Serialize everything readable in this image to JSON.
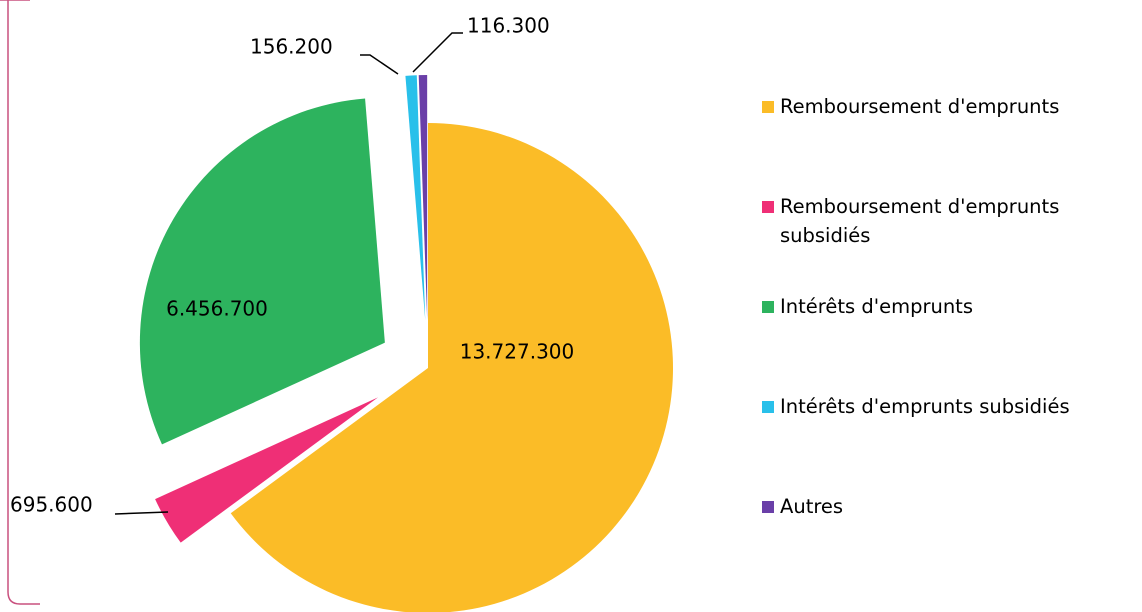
{
  "chart_data": {
    "type": "pie",
    "categories": [
      "Remboursement d'emprunts",
      "Remboursement d'emprunts subsidiés",
      "Intérêts d'emprunts",
      "Intérêts d'emprunts subsidiés",
      "Autres"
    ],
    "values": [
      13727300,
      695600,
      6456700,
      156200,
      116300
    ],
    "value_labels": [
      "13.727.300",
      "695.600",
      "6.456.700",
      "156.200",
      "116.300"
    ],
    "colors": [
      "#fbbc27",
      "#ef2f76",
      "#2db35e",
      "#29c0ea",
      "#6a3fa8"
    ],
    "legend": "right"
  }
}
